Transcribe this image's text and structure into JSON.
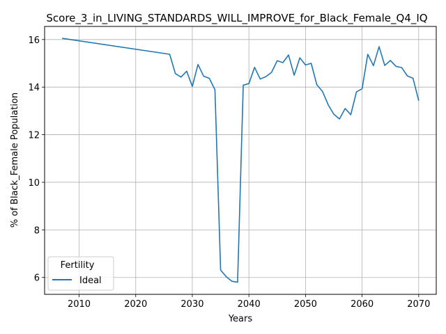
{
  "chart_data": {
    "type": "line",
    "title": "Score_3_in_LIVING_STANDARDS_WILL_IMPROVE_for_Black_Female_Q4_IQ",
    "xlabel": "Years",
    "ylabel": "% of Black_Female Population",
    "xlim": [
      2003.9,
      2073.1
    ],
    "ylim": [
      5.29,
      16.55
    ],
    "xticks": [
      2010,
      2020,
      2030,
      2040,
      2050,
      2060,
      2070
    ],
    "yticks": [
      6,
      8,
      10,
      12,
      14,
      16
    ],
    "grid": true,
    "legend": {
      "title": "Fertility",
      "placement": "lower-left"
    },
    "series": [
      {
        "name": "Ideal",
        "color": "#1f77b4",
        "x": [
          2007,
          2026,
          2027,
          2028,
          2029,
          2030,
          2031,
          2032,
          2033,
          2034,
          2035,
          2036,
          2037,
          2038,
          2039,
          2040,
          2041,
          2042,
          2043,
          2044,
          2045,
          2046,
          2047,
          2048,
          2049,
          2050,
          2051,
          2052,
          2053,
          2054,
          2055,
          2056,
          2057,
          2058,
          2059,
          2060,
          2061,
          2062,
          2063,
          2064,
          2065,
          2066,
          2067,
          2068,
          2069,
          2070
        ],
        "y": [
          16.05,
          15.38,
          14.57,
          14.42,
          14.67,
          14.03,
          14.95,
          14.46,
          14.37,
          13.89,
          6.31,
          6.03,
          5.84,
          5.8,
          14.08,
          14.15,
          14.83,
          14.34,
          14.44,
          14.62,
          15.11,
          15.03,
          15.35,
          14.5,
          15.23,
          14.93,
          15.0,
          14.1,
          13.82,
          13.26,
          12.86,
          12.66,
          13.1,
          12.84,
          13.8,
          13.93,
          15.38,
          14.9,
          15.7,
          14.91,
          15.12,
          14.87,
          14.82,
          14.47,
          14.37,
          13.43
        ]
      }
    ]
  }
}
